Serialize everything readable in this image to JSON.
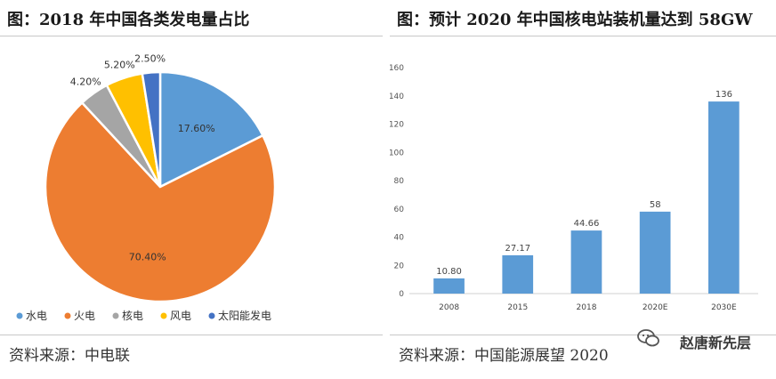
{
  "left": {
    "title": "图：2018 年中国各类发电量占比",
    "source": "资料来源：中电联"
  },
  "right": {
    "title": "图：预计 2020 年中国核电站装机量达到 58GW",
    "source": "资料来源：中国能源展望 2020"
  },
  "watermark": {
    "text": "赵唐新先层",
    "icon": "wechat-icon"
  },
  "chart_data": [
    {
      "type": "pie",
      "title": "2018 年中国各类发电量占比",
      "start_angle_deg": 0,
      "direction": "clockwise",
      "slices": [
        {
          "name": "水电",
          "value": 17.6,
          "label": "17.60%",
          "color": "#5b9bd5"
        },
        {
          "name": "火电",
          "value": 70.4,
          "label": "70.40%",
          "color": "#ed7d31"
        },
        {
          "name": "核电",
          "value": 4.2,
          "label": "4.20%",
          "color": "#a5a5a5"
        },
        {
          "name": "风电",
          "value": 5.2,
          "label": "5.20%",
          "color": "#ffc000"
        },
        {
          "name": "太阳能发电",
          "value": 2.5,
          "label": "2.50%",
          "color": "#4472c4"
        }
      ],
      "legend_position": "bottom"
    },
    {
      "type": "bar",
      "title": "预计 2020 年中国核电站装机量达到 58GW",
      "categories": [
        "2008",
        "2015",
        "2018",
        "2020E",
        "2030E"
      ],
      "values": [
        10.8,
        27.17,
        44.66,
        58,
        136
      ],
      "data_labels": [
        "10.80",
        "27.17",
        "44.66",
        "58",
        "136"
      ],
      "ylim": [
        0,
        160
      ],
      "yticks": [
        0,
        20,
        40,
        60,
        80,
        100,
        120,
        140,
        160
      ],
      "grid": false,
      "bar_color": "#5b9bd5"
    }
  ]
}
